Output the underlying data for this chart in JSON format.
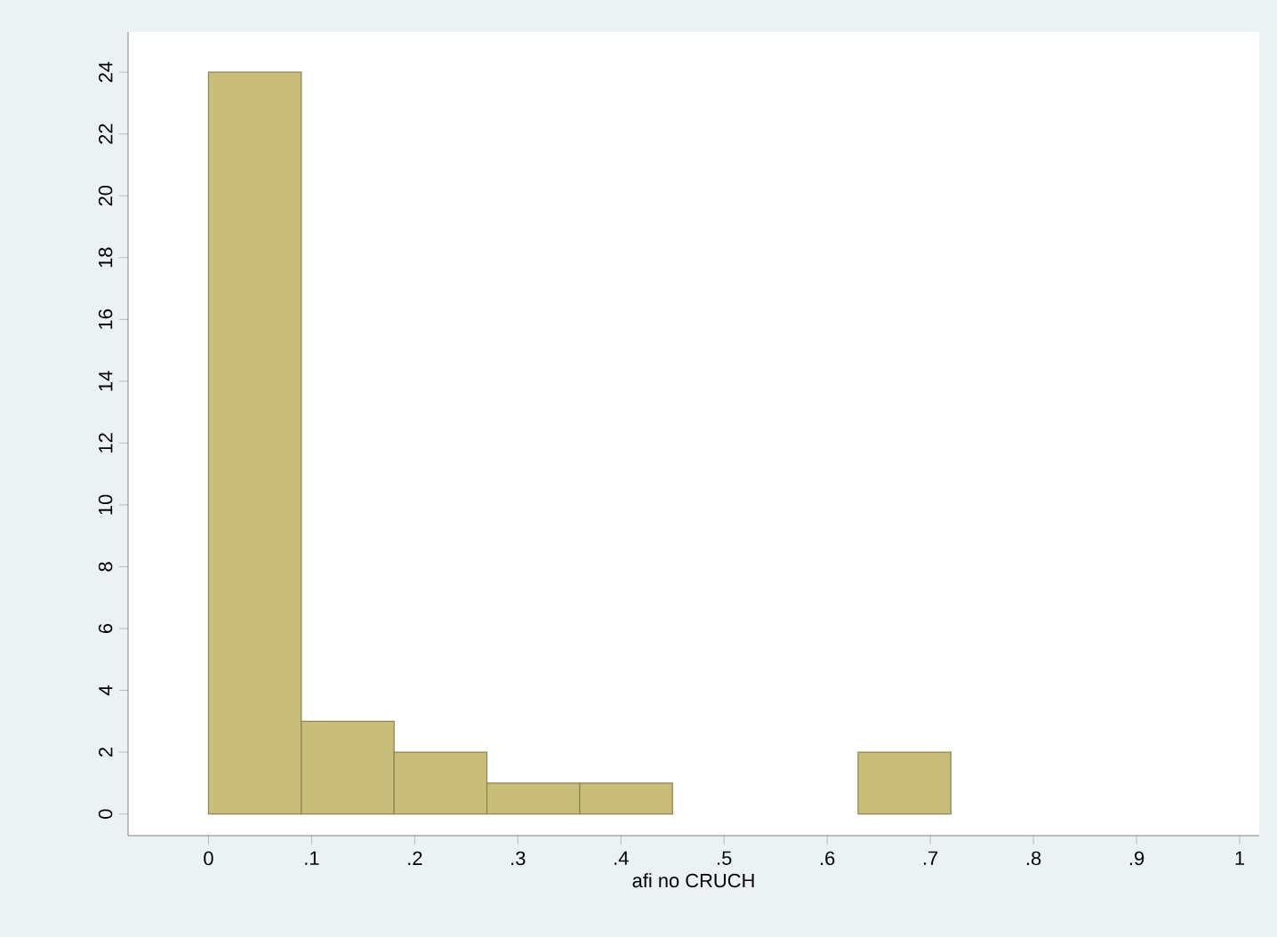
{
  "chart_data": {
    "type": "histogram",
    "xlabel": "afi no CRUCH",
    "bins": [
      0,
      0.09,
      0.18,
      0.27,
      0.36,
      0.45,
      0.54,
      0.63,
      0.72
    ],
    "values": [
      24,
      3,
      2,
      1,
      1,
      0,
      0,
      2
    ],
    "color": "#c8bd79",
    "xlim": [
      -0.078,
      1.019
    ],
    "ylim": [
      -0.7,
      25.3
    ],
    "xticks": [
      0,
      {
        "value": 0.1,
        "label": ".1"
      },
      {
        "value": 0.2,
        "label": ".2"
      },
      {
        "value": 0.3,
        "label": ".3"
      },
      {
        "value": 0.4,
        "label": ".4"
      },
      {
        "value": 0.5,
        "label": ".5"
      },
      {
        "value": 0.6,
        "label": ".6"
      },
      {
        "value": 0.7,
        "label": ".7"
      },
      {
        "value": 0.8,
        "label": ".8"
      },
      {
        "value": 0.9,
        "label": ".9"
      },
      1
    ],
    "yticks": [
      0,
      2,
      4,
      6,
      8,
      10,
      12,
      14,
      16,
      18,
      20,
      22,
      24
    ],
    "grid": false
  }
}
